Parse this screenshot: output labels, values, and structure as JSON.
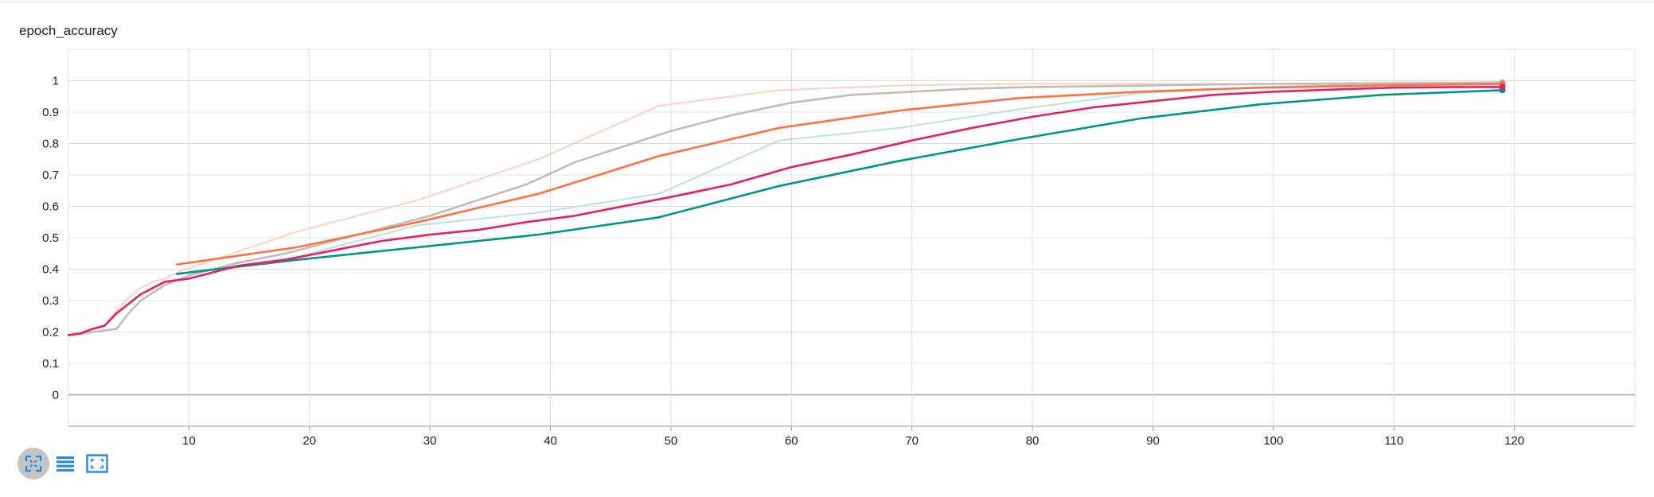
{
  "chart_title": "epoch_accuracy",
  "toolbar": {
    "icons": [
      "fit-domain-icon",
      "toggle-log-scale-icon",
      "expand-chart-icon"
    ]
  },
  "chart_data": {
    "type": "line",
    "title": "epoch_accuracy",
    "xlabel": "",
    "ylabel": "",
    "xlim": [
      0,
      130
    ],
    "ylim": [
      -0.1,
      1.1
    ],
    "xticks": [
      10,
      20,
      30,
      40,
      50,
      60,
      70,
      80,
      90,
      100,
      110,
      120
    ],
    "yticks": [
      0,
      0.1,
      0.2,
      0.3,
      0.4,
      0.5,
      0.6,
      0.7,
      0.8,
      0.9,
      1
    ],
    "grid": true,
    "series": [
      {
        "color": "#ffccbc",
        "faint": true,
        "x": [
          0,
          1,
          2,
          3,
          4,
          5,
          6,
          7,
          8,
          9,
          19,
          29,
          39,
          49,
          59,
          69,
          79,
          89,
          99,
          109,
          119
        ],
        "y": [
          0.19,
          0.2,
          0.21,
          0.22,
          0.27,
          0.31,
          0.34,
          0.36,
          0.37,
          0.39,
          0.52,
          0.62,
          0.75,
          0.92,
          0.97,
          0.985,
          0.99,
          0.99,
          0.99,
          0.995,
          0.995
        ]
      },
      {
        "color": "#b2dfdb",
        "faint": true,
        "x": [
          9,
          19,
          29,
          39,
          49,
          59,
          69,
          79,
          89,
          99,
          109,
          119
        ],
        "y": [
          0.385,
          0.44,
          0.54,
          0.58,
          0.64,
          0.81,
          0.85,
          0.91,
          0.96,
          0.98,
          0.99,
          0.99
        ]
      },
      {
        "color": "#bdbdbd",
        "x": [
          0,
          2,
          4,
          5,
          6,
          8,
          10,
          14,
          18,
          22,
          26,
          30,
          34,
          38,
          42,
          46,
          50,
          55,
          60,
          65,
          70,
          75,
          80,
          85,
          90,
          95,
          100,
          105,
          110,
          115,
          119
        ],
        "y": [
          0.19,
          0.2,
          0.21,
          0.26,
          0.3,
          0.35,
          0.38,
          0.42,
          0.45,
          0.49,
          0.53,
          0.57,
          0.62,
          0.67,
          0.74,
          0.79,
          0.84,
          0.89,
          0.93,
          0.955,
          0.965,
          0.975,
          0.98,
          0.982,
          0.985,
          0.988,
          0.99,
          0.99,
          0.992,
          0.993,
          0.995
        ]
      },
      {
        "color": "#ff7043",
        "x": [
          9,
          19,
          29,
          39,
          49,
          59,
          69,
          79,
          89,
          99,
          109,
          119
        ],
        "y": [
          0.415,
          0.47,
          0.55,
          0.64,
          0.76,
          0.85,
          0.905,
          0.945,
          0.965,
          0.978,
          0.985,
          0.99
        ]
      },
      {
        "color": "#009688",
        "x": [
          9,
          19,
          29,
          39,
          49,
          59,
          69,
          79,
          89,
          99,
          109,
          119
        ],
        "y": [
          0.385,
          0.43,
          0.47,
          0.51,
          0.565,
          0.665,
          0.745,
          0.815,
          0.88,
          0.925,
          0.955,
          0.97
        ]
      },
      {
        "color": "#e91e63",
        "x": [
          0,
          1,
          2,
          3,
          4,
          5,
          6,
          7,
          8,
          10,
          14,
          18,
          22,
          26,
          30,
          34,
          38,
          42,
          46,
          50,
          55,
          60,
          65,
          70,
          75,
          80,
          85,
          90,
          95,
          100,
          105,
          110,
          115,
          119
        ],
        "y": [
          0.19,
          0.195,
          0.21,
          0.22,
          0.26,
          0.29,
          0.32,
          0.34,
          0.36,
          0.37,
          0.41,
          0.43,
          0.46,
          0.49,
          0.51,
          0.525,
          0.55,
          0.57,
          0.6,
          0.63,
          0.67,
          0.725,
          0.765,
          0.81,
          0.85,
          0.885,
          0.915,
          0.935,
          0.955,
          0.965,
          0.972,
          0.978,
          0.98,
          0.98
        ]
      }
    ]
  }
}
